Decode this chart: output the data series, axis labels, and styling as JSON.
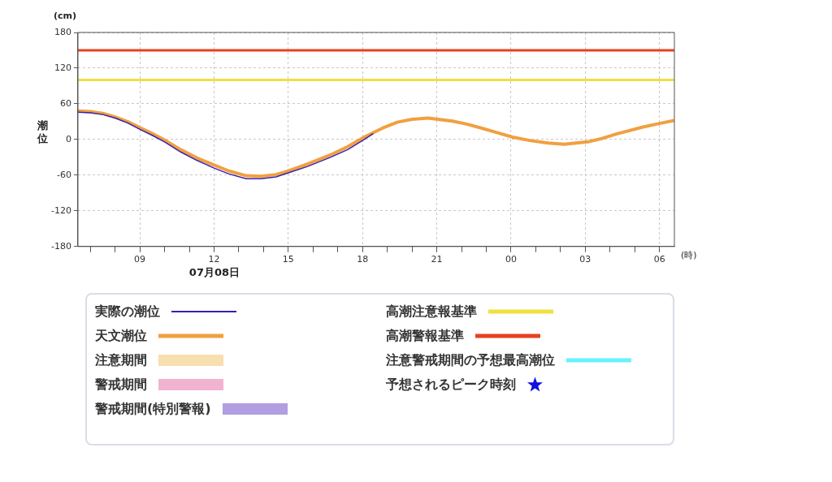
{
  "chart_data": {
    "type": "line",
    "ylabel": "潮位",
    "xlabel": "(時)",
    "annotations": [
      "(cm)",
      "07月08日"
    ],
    "xlim": [
      "--07-08T06:30",
      "--07-09T06:36"
    ],
    "ylim": [
      -180,
      180
    ],
    "xticks": [
      {
        "value": "--07-08T07:00",
        "label": null
      },
      {
        "value": "--07-08T08:00",
        "label": null
      },
      {
        "value": "--07-08T09:00",
        "label": "09"
      },
      {
        "value": "--07-08T10:00",
        "label": null
      },
      {
        "value": "--07-08T11:00",
        "label": null
      },
      {
        "value": "--07-08T12:00",
        "label": "12"
      },
      {
        "value": "--07-08T13:00",
        "label": null
      },
      {
        "value": "--07-08T14:00",
        "label": null
      },
      {
        "value": "--07-08T15:00",
        "label": "15"
      },
      {
        "value": "--07-08T16:00",
        "label": null
      },
      {
        "value": "--07-08T17:00",
        "label": null
      },
      {
        "value": "--07-08T18:00",
        "label": "18"
      },
      {
        "value": "--07-08T19:00",
        "label": null
      },
      {
        "value": "--07-08T20:00",
        "label": null
      },
      {
        "value": "--07-08T21:00",
        "label": "21"
      },
      {
        "value": "--07-08T22:00",
        "label": null
      },
      {
        "value": "--07-08T23:00",
        "label": null
      },
      {
        "value": "--07-09T00:00",
        "label": "00"
      },
      {
        "value": "--07-09T01:00",
        "label": null
      },
      {
        "value": "--07-09T02:00",
        "label": null
      },
      {
        "value": "--07-09T03:00",
        "label": "03"
      },
      {
        "value": "--07-09T04:00",
        "label": null
      },
      {
        "value": "--07-09T05:00",
        "label": null
      },
      {
        "value": "--07-09T06:00",
        "label": "06"
      }
    ],
    "yticks": [
      -180,
      -120,
      -60,
      0,
      60,
      120,
      180
    ],
    "grid": true,
    "legend": "bottom",
    "marker": "none",
    "series": [
      {
        "name": "実際の潮位",
        "color": "#3a1fb0",
        "x": [
          "--07-08T06:30",
          "--07-08T07:00",
          "--07-08T07:30",
          "--07-08T08:00",
          "--07-08T08:30",
          "--07-08T09:00",
          "--07-08T09:30",
          "--07-08T10:00",
          "--07-08T10:39",
          "--07-08T11:18",
          "--07-08T12:00",
          "--07-08T12:36",
          "--07-08T13:18",
          "--07-08T13:54",
          "--07-08T14:30",
          "--07-08T15:00",
          "--07-08T15:48",
          "--07-08T16:42",
          "--07-08T17:24",
          "--07-08T18:04",
          "--07-08T18:26"
        ],
        "values": [
          46,
          45,
          42,
          36,
          28,
          17,
          7,
          -4,
          -21,
          -35,
          -48,
          -58,
          -66,
          -66,
          -63,
          -56,
          -45,
          -30,
          -17,
          0,
          10
        ]
      },
      {
        "name": "天文潮位",
        "color": "#f0a040",
        "x": [
          "--07-08T06:30",
          "--07-08T07:00",
          "--07-08T07:30",
          "--07-08T08:00",
          "--07-08T08:30",
          "--07-08T09:00",
          "--07-08T09:30",
          "--07-08T10:00",
          "--07-08T10:39",
          "--07-08T11:18",
          "--07-08T12:00",
          "--07-08T12:36",
          "--07-08T13:18",
          "--07-08T13:54",
          "--07-08T14:30",
          "--07-08T15:00",
          "--07-08T15:48",
          "--07-08T16:42",
          "--07-08T17:24",
          "--07-08T18:04",
          "--07-08T18:48",
          "--07-08T19:24",
          "--07-08T20:00",
          "--07-08T20:39",
          "--07-08T21:38",
          "--07-08T22:12",
          "--07-08T22:44",
          "--07-08T23:24",
          "--07-09T00:04",
          "--07-09T00:48",
          "--07-09T01:30",
          "--07-09T02:09",
          "--07-09T03:06",
          "--07-09T03:42",
          "--07-09T04:14",
          "--07-09T05:20",
          "--07-09T06:00",
          "--07-09T06:36"
        ],
        "values": [
          48,
          47,
          44,
          38,
          30,
          20,
          10,
          -1,
          -17,
          -31,
          -43,
          -53,
          -61,
          -62,
          -59,
          -53,
          -41,
          -26,
          -12,
          4,
          19,
          29,
          34,
          36,
          31,
          26,
          20,
          12,
          4,
          -2,
          -6,
          -8,
          -4,
          2,
          9,
          21,
          27,
          32
        ]
      },
      {
        "name": "注意期間",
        "type": "area",
        "color": "#f8dfb0"
      },
      {
        "name": "警戒期間",
        "type": "area",
        "color": "#f2b3d0"
      },
      {
        "name": "警戒期間(特別警報)",
        "type": "area",
        "color": "#b09ee0"
      },
      {
        "name": "注意警戒期間の予想最高潮位",
        "type": "line",
        "color": "#66f2ff"
      },
      {
        "name": "予想されるピーク時刻",
        "type": "scatter",
        "marker": "star",
        "color": "#1010e0"
      }
    ],
    "ref_lines": [
      {
        "axis": "y",
        "value": 100,
        "label": "高潮注意報基準",
        "color": "#f0e040"
      },
      {
        "axis": "y",
        "value": 150,
        "label": "高潮警報基準",
        "color": "#e84020"
      }
    ]
  }
}
